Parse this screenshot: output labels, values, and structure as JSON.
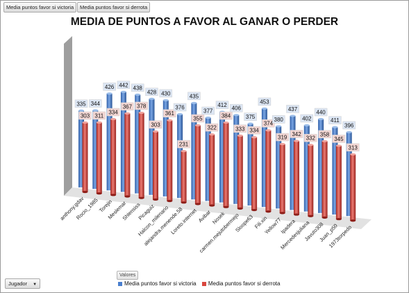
{
  "field_buttons": {
    "victory": "Media puntos favor si victoria",
    "defeat": "Media puntos favor si derrota"
  },
  "row_field": {
    "label": "Jugador"
  },
  "values_field": {
    "label": "Valores"
  },
  "colors": {
    "victory": "#4a7fcf",
    "defeat": "#d9473f",
    "victory_label_bg": "#dce6f4",
    "defeat_label_bg": "#f2d6d3"
  },
  "chart_data": {
    "type": "bar",
    "title": "MEDIA DE PUNTOS A FAVOR AL GANAR O PERDER",
    "categories": [
      "anthony.gdav",
      "Rocio_1985",
      "Torejin",
      "Meslemar",
      "Shlensiss",
      "Picaguiz",
      "Halcon_milenario",
      "alejandra.menende.58",
      "Loreto.internet",
      "Avibar",
      "Nosek",
      "carmen.mejutobermejo",
      "Sloope63",
      "Fili.xin",
      "Yellow77",
      "Ipadera",
      "Mercedesjuliana",
      "Javuto308",
      "Juan_p50",
      "1973torpedo"
    ],
    "series": [
      {
        "name": "Media puntos favor si victoria",
        "values": [
          335,
          344,
          426,
          442,
          438,
          428,
          430,
          376,
          435,
          377,
          412,
          406,
          375,
          453,
          380,
          437,
          402,
          440,
          411,
          396
        ]
      },
      {
        "name": "Media puntos favor si derrota",
        "values": [
          303,
          311,
          334,
          367,
          378,
          303,
          361,
          231,
          355,
          322,
          384,
          333,
          334,
          374,
          319,
          342,
          332,
          358,
          345,
          313
        ]
      }
    ],
    "legend_position": "bottom",
    "grid": false
  }
}
